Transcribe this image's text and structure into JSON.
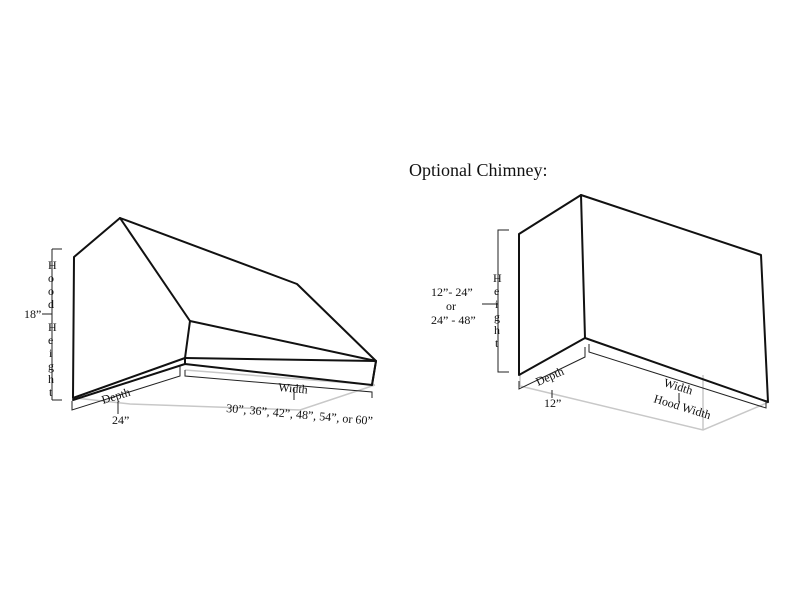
{
  "hood": {
    "height_value": "18”",
    "height_letters": [
      "H",
      "o",
      "o",
      "d",
      "",
      "H",
      "e",
      "i",
      "g",
      "h",
      "t"
    ],
    "depth_label": "Depth",
    "depth_value": "24”",
    "width_label": "Width",
    "width_options": "30”, 36”, 42”, 48”, 54”, or 60”"
  },
  "chimney": {
    "title": "Optional Chimney:",
    "height_letters": [
      "H",
      "e",
      "i",
      "g",
      "h",
      "t"
    ],
    "height_option_1": "12”- 24”",
    "height_or": "or",
    "height_option_2": "24” - 48”",
    "depth_label": "Depth",
    "depth_value": "12”",
    "width_label": "Width",
    "width_value": "Hood Width"
  }
}
